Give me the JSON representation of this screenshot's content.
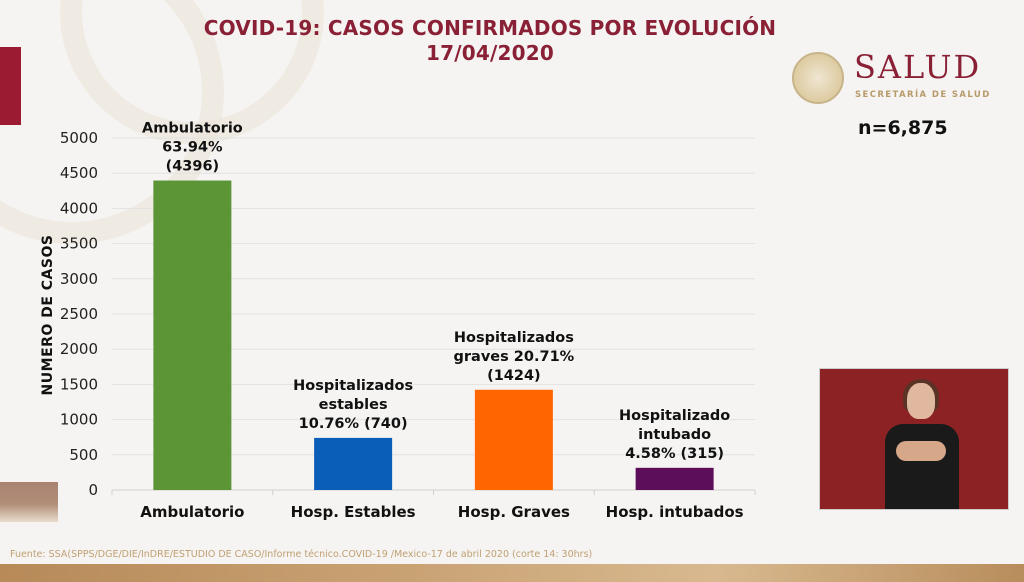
{
  "header": {
    "title_line1": "COVID-19: CASOS CONFIRMADOS POR EVOLUCIÓN",
    "title_line2": "17/04/2020"
  },
  "logo": {
    "name": "SALUD",
    "subtitle": "SECRETARÍA DE SALUD"
  },
  "sample_size": "n=6,875",
  "footer": {
    "source": "Fuente: SSA(SPPS/DGE/DIE/InDRE/ESTUDIO DE CASO/Informe técnico.COVID-19 /Mexico-17 de abril 2020 (corte 14: 30hrs)"
  },
  "interpreter": {
    "description": "sign-language interpreter video"
  },
  "chart_data": {
    "type": "bar",
    "title": "COVID-19: CASOS CONFIRMADOS POR EVOLUCIÓN 17/04/2020",
    "xlabel": "",
    "ylabel": "NUMERO DE CASOS",
    "ylim": [
      0,
      5000
    ],
    "yticks": [
      0,
      500,
      1000,
      1500,
      2000,
      2500,
      3000,
      3500,
      4000,
      4500,
      5000
    ],
    "grid": true,
    "categories": [
      "Ambulatorio",
      "Hosp. Estables",
      "Hosp. Graves",
      "Hosp. intubados"
    ],
    "values": [
      4396,
      740,
      1424,
      315
    ],
    "percentages": [
      63.94,
      10.76,
      20.71,
      4.58
    ],
    "colors": [
      "#5b9536",
      "#0b5eb8",
      "#ff6600",
      "#5c0e5a"
    ],
    "data_labels": [
      [
        "Ambulatorio",
        "63.94%",
        "(4396)"
      ],
      [
        "Hospitalizados",
        "estables",
        "10.76% (740)"
      ],
      [
        "Hospitalizados",
        "graves 20.71%",
        "(1424)"
      ],
      [
        "Hospitalizado",
        "intubado",
        "4.58% (315)"
      ]
    ]
  }
}
